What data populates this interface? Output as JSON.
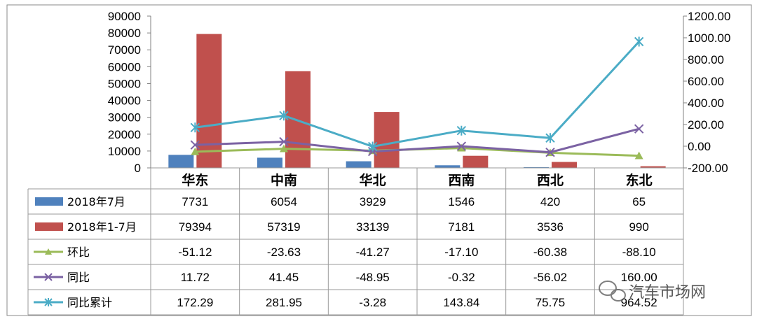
{
  "chart_data": {
    "type": "bar",
    "categories": [
      "华东",
      "中南",
      "华北",
      "西南",
      "西北",
      "东北"
    ],
    "y_left": {
      "ylim": [
        0,
        90000
      ],
      "ticks": [
        "0",
        "10000",
        "20000",
        "30000",
        "40000",
        "50000",
        "60000",
        "70000",
        "80000",
        "90000"
      ]
    },
    "y_right": {
      "ylim": [
        -200,
        1200
      ],
      "ticks": [
        "-200.00",
        "0.00",
        "200.00",
        "400.00",
        "600.00",
        "800.00",
        "1000.00",
        "1200.00"
      ]
    },
    "bar_series": [
      {
        "name": "2018年7月",
        "color": "#4f81bd",
        "values": [
          7731,
          6054,
          3929,
          1546,
          420,
          65
        ],
        "labels": [
          "7731",
          "6054",
          "3929",
          "1546",
          "420",
          "65"
        ]
      },
      {
        "name": "2018年1-7月",
        "color": "#c0504d",
        "values": [
          79394,
          57319,
          33139,
          7181,
          3536,
          990
        ],
        "labels": [
          "79394",
          "57319",
          "33139",
          "7181",
          "3536",
          "990"
        ]
      }
    ],
    "line_series": [
      {
        "name": "环比",
        "color": "#9bbb59",
        "marker": "triangle",
        "values": [
          -51.12,
          -23.63,
          -41.27,
          -17.1,
          -60.38,
          -88.1
        ],
        "labels": [
          "-51.12",
          "-23.63",
          "-41.27",
          "-17.10",
          "-60.38",
          "-88.10"
        ]
      },
      {
        "name": "同比",
        "color": "#7b62a3",
        "marker": "x",
        "values": [
          11.72,
          41.45,
          -48.95,
          -0.32,
          -56.02,
          160.0
        ],
        "labels": [
          "11.72",
          "41.45",
          "-48.95",
          "-0.32",
          "-56.02",
          "160.00"
        ]
      },
      {
        "name": "同比累计",
        "color": "#4bacc6",
        "marker": "star",
        "values": [
          172.29,
          281.95,
          -3.28,
          143.84,
          75.75,
          964.52
        ],
        "labels": [
          "172.29",
          "281.95",
          "-3.28",
          "143.84",
          "75.75",
          "964.52"
        ]
      }
    ],
    "grid": false,
    "legend": "data-table"
  },
  "watermark": {
    "text": "汽车市场网",
    "icon": "wechat-icon"
  }
}
